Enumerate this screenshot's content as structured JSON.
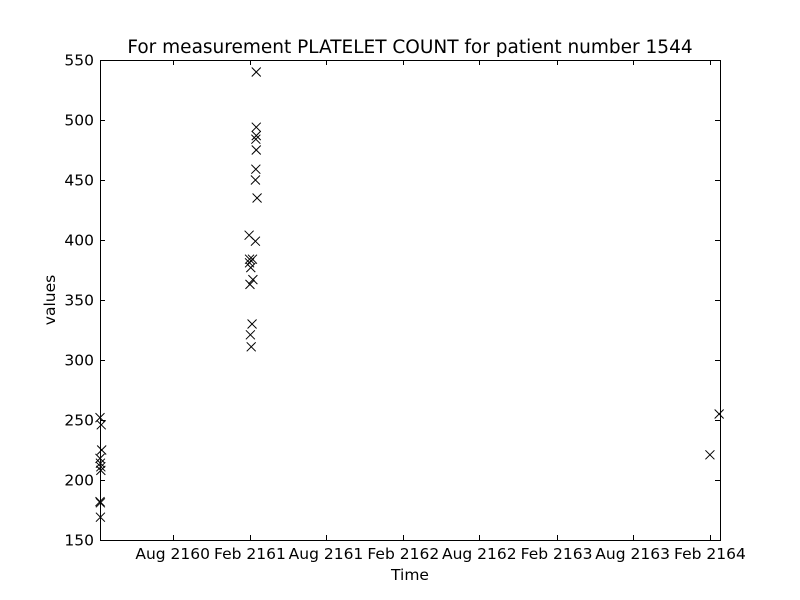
{
  "chart_data": {
    "type": "scatter",
    "title": "For measurement PLATELET COUNT for patient number 1544",
    "xlabel": "Time",
    "ylabel": "values",
    "ylim": [
      150,
      550
    ],
    "xlim": [
      "2160-02-10",
      "2164-02-25"
    ],
    "yticks": [
      150,
      200,
      250,
      300,
      350,
      400,
      450,
      500,
      550
    ],
    "xticks": [
      {
        "date": "2160-08-01",
        "label": "Aug 2160"
      },
      {
        "date": "2161-02-01",
        "label": "Feb 2161"
      },
      {
        "date": "2161-08-01",
        "label": "Aug 2161"
      },
      {
        "date": "2162-02-01",
        "label": "Feb 2162"
      },
      {
        "date": "2162-08-01",
        "label": "Aug 2162"
      },
      {
        "date": "2163-02-01",
        "label": "Feb 2163"
      },
      {
        "date": "2163-08-01",
        "label": "Aug 2163"
      },
      {
        "date": "2164-02-01",
        "label": "Feb 2164"
      }
    ],
    "marker": "x",
    "marker_color": "#000000",
    "grid": false,
    "legend": "none",
    "series": [
      {
        "points": [
          {
            "x": "2160-02-10",
            "y": 252
          },
          {
            "x": "2160-02-13",
            "y": 246
          },
          {
            "x": "2160-02-14",
            "y": 225
          },
          {
            "x": "2160-02-10",
            "y": 218
          },
          {
            "x": "2160-02-11",
            "y": 214
          },
          {
            "x": "2160-02-12",
            "y": 211
          },
          {
            "x": "2160-02-12",
            "y": 208
          },
          {
            "x": "2160-02-10",
            "y": 182
          },
          {
            "x": "2160-02-11",
            "y": 181
          },
          {
            "x": "2160-02-11",
            "y": 169
          },
          {
            "x": "2161-02-16",
            "y": 540
          },
          {
            "x": "2161-02-16",
            "y": 494
          },
          {
            "x": "2161-02-16",
            "y": 487
          },
          {
            "x": "2161-02-15",
            "y": 484
          },
          {
            "x": "2161-02-16",
            "y": 475
          },
          {
            "x": "2161-02-15",
            "y": 459
          },
          {
            "x": "2161-02-14",
            "y": 450
          },
          {
            "x": "2161-02-18",
            "y": 435
          },
          {
            "x": "2161-01-30",
            "y": 404
          },
          {
            "x": "2161-02-14",
            "y": 399
          },
          {
            "x": "2161-01-31",
            "y": 384
          },
          {
            "x": "2161-02-07",
            "y": 384
          },
          {
            "x": "2161-01-31",
            "y": 381
          },
          {
            "x": "2161-02-03",
            "y": 377
          },
          {
            "x": "2161-02-08",
            "y": 367
          },
          {
            "x": "2161-02-01",
            "y": 363
          },
          {
            "x": "2161-02-06",
            "y": 330
          },
          {
            "x": "2161-02-02",
            "y": 321
          },
          {
            "x": "2161-02-04",
            "y": 311
          },
          {
            "x": "2164-02-01",
            "y": 221
          },
          {
            "x": "2164-02-23",
            "y": 255
          }
        ]
      }
    ]
  }
}
